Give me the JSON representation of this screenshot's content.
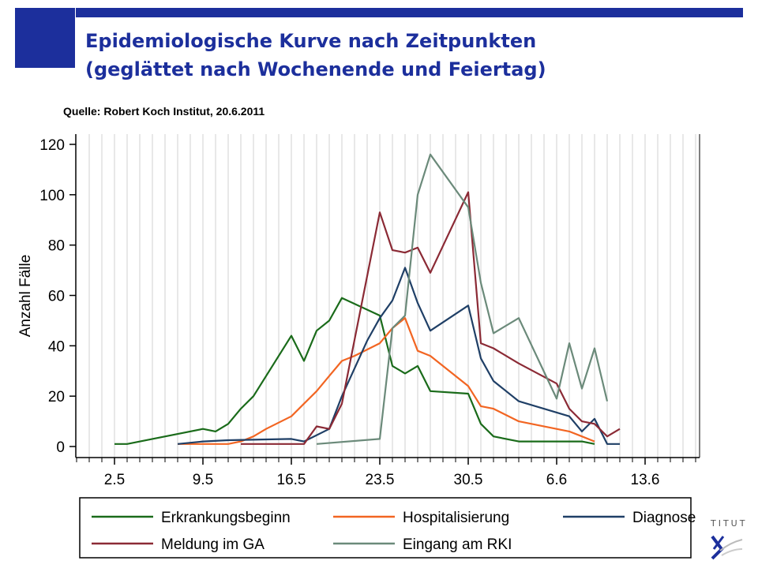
{
  "header": {
    "title_line1": "Epidemiologische Kurve nach Zeitpunkten",
    "title_line2": "(geglättet nach Wochenende und Feiertag)",
    "source": "Quelle: Robert Koch Institut, 20.6.2011"
  },
  "logo": {
    "text": "TITUT",
    "mark": "x-logo-icon"
  },
  "chart_data": {
    "type": "line",
    "ylabel": "Anzahl Fälle",
    "xlabel": "",
    "ylim": [
      0,
      120
    ],
    "yticks": [
      0,
      20,
      40,
      60,
      80,
      100,
      120
    ],
    "x_unit": "day",
    "x_day0": "2.5",
    "xlim": [
      -3,
      46
    ],
    "xticks": [
      {
        "day": 0,
        "label": "2.5"
      },
      {
        "day": 7,
        "label": "9.5"
      },
      {
        "day": 14,
        "label": "16.5"
      },
      {
        "day": 21,
        "label": "23.5"
      },
      {
        "day": 28,
        "label": "30.5"
      },
      {
        "day": 35,
        "label": "6.6"
      },
      {
        "day": 42,
        "label": "13.6"
      }
    ],
    "grid": true,
    "legend_position": "bottom",
    "series": [
      {
        "name": "Erkrankungsbeginn",
        "color": "#1a6b1a",
        "points": [
          [
            0,
            1
          ],
          [
            1,
            1
          ],
          [
            3,
            3
          ],
          [
            7,
            7
          ],
          [
            8,
            6
          ],
          [
            9,
            9
          ],
          [
            10,
            15
          ],
          [
            11,
            20
          ],
          [
            14,
            44
          ],
          [
            15,
            34
          ],
          [
            16,
            46
          ],
          [
            17,
            50
          ],
          [
            18,
            59
          ],
          [
            21,
            52
          ],
          [
            22,
            32
          ],
          [
            23,
            29
          ],
          [
            24,
            32
          ],
          [
            25,
            22
          ],
          [
            28,
            21
          ],
          [
            29,
            9
          ],
          [
            30,
            4
          ],
          [
            32,
            2
          ],
          [
            36,
            2
          ],
          [
            37,
            2
          ],
          [
            38,
            1
          ]
        ]
      },
      {
        "name": "Hospitalisierung",
        "color": "#f26522",
        "points": [
          [
            5,
            1
          ],
          [
            9,
            1
          ],
          [
            10,
            2
          ],
          [
            11,
            4
          ],
          [
            12,
            7
          ],
          [
            14,
            12
          ],
          [
            15,
            17
          ],
          [
            16,
            22
          ],
          [
            17,
            28
          ],
          [
            18,
            34
          ],
          [
            19,
            36
          ],
          [
            21,
            41
          ],
          [
            22,
            47
          ],
          [
            23,
            51
          ],
          [
            24,
            38
          ],
          [
            25,
            36
          ],
          [
            28,
            24
          ],
          [
            29,
            16
          ],
          [
            30,
            15
          ],
          [
            32,
            10
          ],
          [
            36,
            6
          ],
          [
            37,
            4
          ],
          [
            38,
            2
          ]
        ]
      },
      {
        "name": "Diagnose",
        "color": "#1f3f66",
        "points": [
          [
            5,
            1
          ],
          [
            7,
            2
          ],
          [
            9,
            2.5
          ],
          [
            14,
            3
          ],
          [
            15,
            2
          ],
          [
            17,
            7
          ],
          [
            18,
            20
          ],
          [
            20,
            42
          ],
          [
            21,
            51
          ],
          [
            22,
            58
          ],
          [
            23,
            71
          ],
          [
            24,
            57
          ],
          [
            25,
            46
          ],
          [
            28,
            56
          ],
          [
            29,
            35
          ],
          [
            30,
            26
          ],
          [
            32,
            18
          ],
          [
            36,
            12
          ],
          [
            37,
            6
          ],
          [
            38,
            11
          ],
          [
            39,
            1
          ],
          [
            40,
            1
          ]
        ]
      },
      {
        "name": "Meldung im GA",
        "color": "#8b2a35",
        "points": [
          [
            10,
            1
          ],
          [
            15,
            1
          ],
          [
            16,
            8
          ],
          [
            17,
            7
          ],
          [
            18,
            17
          ],
          [
            21,
            93
          ],
          [
            22,
            78
          ],
          [
            23,
            77
          ],
          [
            24,
            79
          ],
          [
            25,
            69
          ],
          [
            28,
            101
          ],
          [
            29,
            41
          ],
          [
            30,
            39
          ],
          [
            32,
            33
          ],
          [
            35,
            25
          ],
          [
            36,
            15
          ],
          [
            37,
            10
          ],
          [
            38,
            9
          ],
          [
            39,
            4
          ],
          [
            40,
            7
          ]
        ]
      },
      {
        "name": "Eingang am RKI",
        "color": "#6b8a7a",
        "points": [
          [
            16,
            1
          ],
          [
            21,
            3
          ],
          [
            22,
            47
          ],
          [
            23,
            52
          ],
          [
            24,
            100
          ],
          [
            25,
            116
          ],
          [
            28,
            95
          ],
          [
            29,
            65
          ],
          [
            30,
            45
          ],
          [
            32,
            51
          ],
          [
            35,
            19
          ],
          [
            36,
            41
          ],
          [
            37,
            23
          ],
          [
            38,
            39
          ],
          [
            39,
            18
          ]
        ]
      }
    ]
  }
}
